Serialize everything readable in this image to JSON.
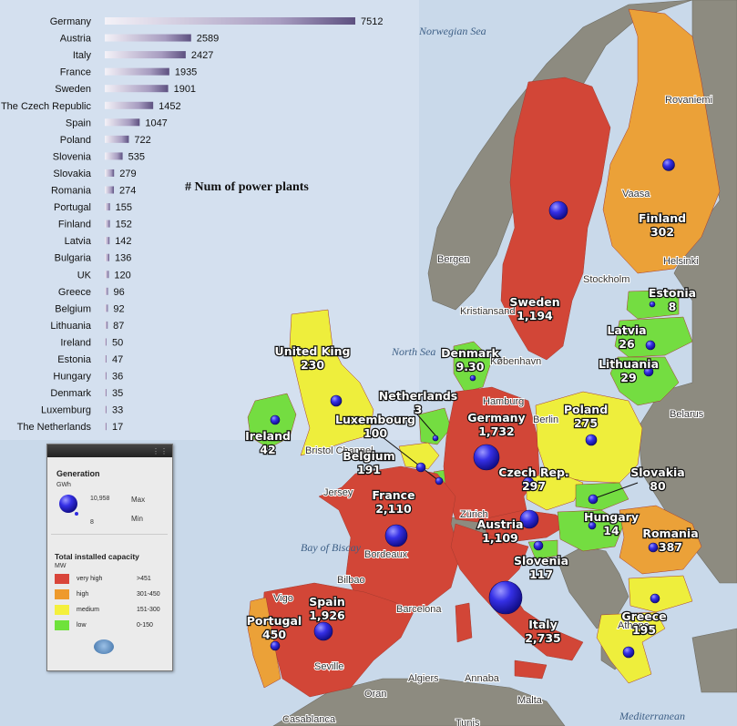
{
  "chart_data": {
    "type": "bar",
    "title": "# Num of power plants",
    "categories": [
      "Germany",
      "Austria",
      "Italy",
      "France",
      "Sweden",
      "The Czech Republic",
      "Spain",
      "Poland",
      "Slovenia",
      "Slovakia",
      "Romania",
      "Portugal",
      "Finland",
      "Latvia",
      "Bulgaria",
      "UK",
      "Greece",
      "Belgium",
      "Lithuania",
      "Ireland",
      "Estonia",
      "Hungary",
      "Denmark",
      "Luxemburg",
      "The Netherlands"
    ],
    "values": [
      7512,
      2589,
      2427,
      1935,
      1901,
      1452,
      1047,
      722,
      535,
      279,
      274,
      155,
      152,
      142,
      136,
      120,
      96,
      92,
      87,
      50,
      47,
      36,
      35,
      33,
      17
    ],
    "xlim": [
      0,
      7512
    ],
    "orientation": "horizontal",
    "grid": false
  },
  "map": {
    "seas": [
      "Norwegian Sea",
      "North Sea",
      "Bay of Biscay",
      "Mediterranean"
    ],
    "countries": [
      {
        "name": "Finland",
        "value": "302",
        "category": "high"
      },
      {
        "name": "Sweden",
        "value": "1,194",
        "category": "very high"
      },
      {
        "name": "Estonia",
        "value": "8",
        "category": "low"
      },
      {
        "name": "Latvia",
        "value": "26",
        "category": "low"
      },
      {
        "name": "Lithuania",
        "value": "29",
        "category": "low"
      },
      {
        "name": "Denmark",
        "value": "9.30",
        "category": "low"
      },
      {
        "name": "United King",
        "value": "230",
        "category": "medium"
      },
      {
        "name": "Ireland",
        "value": "42",
        "category": "low"
      },
      {
        "name": "Netherlands",
        "value": "3",
        "category": "low"
      },
      {
        "name": "Luxembourg",
        "value": "100",
        "category": "low"
      },
      {
        "name": "Belgium",
        "value": "191",
        "category": "medium"
      },
      {
        "name": "Germany",
        "value": "1,732",
        "category": "very high"
      },
      {
        "name": "Poland",
        "value": "275",
        "category": "medium"
      },
      {
        "name": "Czech Rep.",
        "value": "297",
        "category": "medium"
      },
      {
        "name": "Slovakia",
        "value": "80",
        "category": "low"
      },
      {
        "name": "France",
        "value": "2,110",
        "category": "very high"
      },
      {
        "name": "Austria",
        "value": "1,109",
        "category": "very high"
      },
      {
        "name": "Hungary",
        "value": "14",
        "category": "low"
      },
      {
        "name": "Romania",
        "value": "387",
        "category": "high"
      },
      {
        "name": "Slovenia",
        "value": "117",
        "category": "low"
      },
      {
        "name": "Spain",
        "value": "1,926",
        "category": "very high"
      },
      {
        "name": "Portugal",
        "value": "450",
        "category": "high"
      },
      {
        "name": "Italy",
        "value": "2,735",
        "category": "very high"
      },
      {
        "name": "Greece",
        "value": "195",
        "category": "medium"
      }
    ],
    "cities": [
      "Stockholm",
      "Helsinki",
      "Bergen",
      "Kristiansand",
      "København",
      "Hamburg",
      "Berlin",
      "Zürich",
      "Bordeaux",
      "Bilbao",
      "Vigo",
      "Seville",
      "Barcelona",
      "Algiers",
      "Annaba",
      "Oran",
      "Malta",
      "Casablanca",
      "Tunis",
      "Jersey",
      "Belarus",
      "Rovaniemi",
      "Vaasa",
      "Bristol Channel",
      "Athens"
    ]
  },
  "legend": {
    "generation_title": "Generation",
    "generation_unit": "GWh",
    "max_value": "10,958",
    "max_label": "Max",
    "min_value": "8",
    "min_label": "Min",
    "capacity_title": "Total installed capacity",
    "capacity_unit": "MW",
    "items": [
      {
        "label": "very high",
        "range": ">451",
        "color": "#d9453a"
      },
      {
        "label": "high",
        "range": "301-450",
        "color": "#ee9a2c"
      },
      {
        "label": "medium",
        "range": "151-300",
        "color": "#f4f03d"
      },
      {
        "label": "low",
        "range": "0-150",
        "color": "#6fe23b"
      }
    ]
  },
  "colors": {
    "sea": "#c9d9ea",
    "other_land": "#8c8a7f",
    "bubble": "#2f2ae0"
  }
}
